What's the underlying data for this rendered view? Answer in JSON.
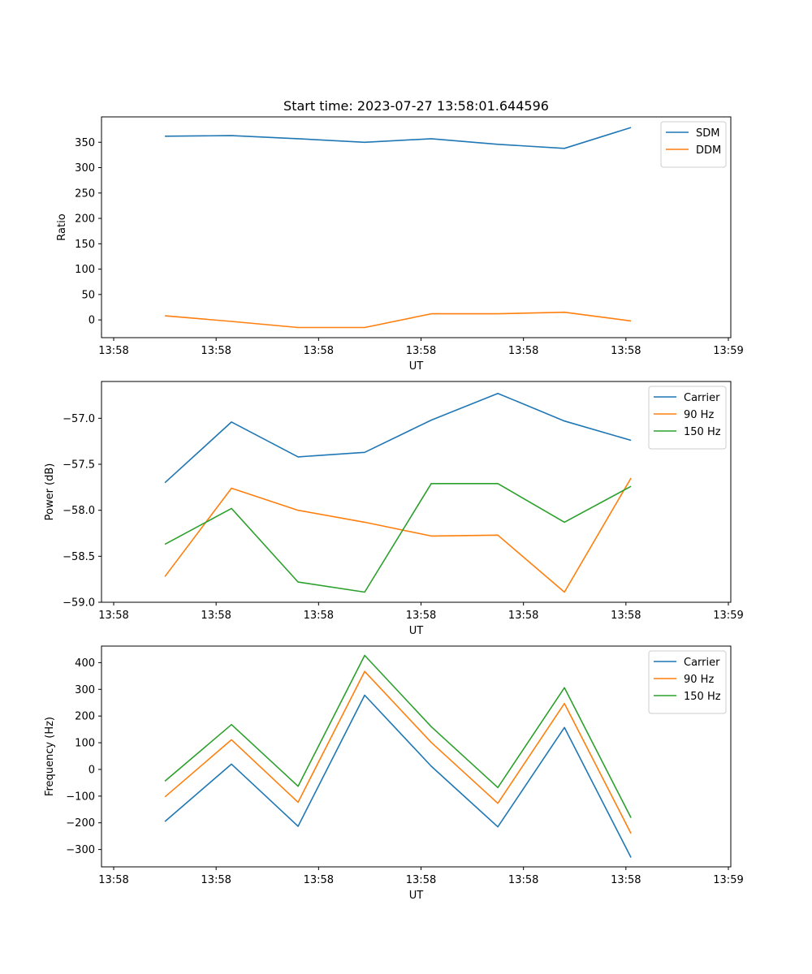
{
  "figure_title": "Start time: 2023-07-27 13:58:01.644596",
  "colors": {
    "blue": "#1f77b4",
    "orange": "#ff7f0e",
    "green": "#2ca02c",
    "axis": "#000000"
  },
  "chart_data": [
    {
      "type": "line",
      "title": "Start time: 2023-07-27 13:58:01.644596",
      "xlabel": "UT",
      "ylabel": "Ratio",
      "x": [
        0.5,
        1.15,
        1.8,
        2.45,
        3.1,
        3.75,
        4.4,
        5.05
      ],
      "xlim": [
        0,
        6
      ],
      "xticks": [
        0,
        1,
        2,
        3,
        4,
        5,
        6
      ],
      "xtick_labels": [
        "13:58",
        "13:58",
        "13:58",
        "13:58",
        "13:58",
        "13:58",
        "13:59"
      ],
      "ylim": [
        -35,
        400
      ],
      "yticks": [
        0,
        50,
        100,
        150,
        200,
        250,
        300,
        350
      ],
      "ytick_labels": [
        "0",
        "50",
        "100",
        "150",
        "200",
        "250",
        "300",
        "350"
      ],
      "legend_position": "top-right",
      "series": [
        {
          "name": "SDM",
          "color": "#1f77b4",
          "values": [
            362,
            363,
            357,
            350,
            357,
            346,
            338,
            379
          ]
        },
        {
          "name": "DDM",
          "color": "#ff7f0e",
          "values": [
            8,
            -3,
            -15,
            -15,
            12,
            12,
            15,
            -2
          ]
        }
      ]
    },
    {
      "type": "line",
      "title": "",
      "xlabel": "UT",
      "ylabel": "Power (dB)",
      "x": [
        0.5,
        1.15,
        1.8,
        2.45,
        3.1,
        3.75,
        4.4,
        5.05
      ],
      "xlim": [
        0,
        6
      ],
      "xticks": [
        0,
        1,
        2,
        3,
        4,
        5,
        6
      ],
      "xtick_labels": [
        "13:58",
        "13:58",
        "13:58",
        "13:58",
        "13:58",
        "13:58",
        "13:59"
      ],
      "ylim": [
        -59.0,
        -56.6
      ],
      "yticks": [
        -59.0,
        -58.5,
        -58.0,
        -57.5,
        -57.0
      ],
      "ytick_labels": [
        "−59.0",
        "−58.5",
        "−58.0",
        "−57.5",
        "−57.0"
      ],
      "legend_position": "top-right",
      "series": [
        {
          "name": "Carrier",
          "color": "#1f77b4",
          "values": [
            -57.7,
            -57.04,
            -57.42,
            -57.37,
            -57.02,
            -56.73,
            -57.03,
            -57.24
          ]
        },
        {
          "name": "90 Hz",
          "color": "#ff7f0e",
          "values": [
            -58.72,
            -57.76,
            -58.0,
            -58.13,
            -58.28,
            -58.27,
            -58.89,
            -57.65
          ]
        },
        {
          "name": "150 Hz",
          "color": "#2ca02c",
          "values": [
            -58.37,
            -57.98,
            -58.78,
            -58.89,
            -57.71,
            -57.71,
            -58.13,
            -57.74
          ]
        }
      ]
    },
    {
      "type": "line",
      "title": "",
      "xlabel": "UT",
      "ylabel": "Frequency (Hz)",
      "x": [
        0.5,
        1.15,
        1.8,
        2.45,
        3.1,
        3.75,
        4.4,
        5.05
      ],
      "xlim": [
        0,
        6
      ],
      "xticks": [
        0,
        1,
        2,
        3,
        4,
        5,
        6
      ],
      "xtick_labels": [
        "13:58",
        "13:58",
        "13:58",
        "13:58",
        "13:58",
        "13:58",
        "13:59"
      ],
      "ylim": [
        -365,
        462
      ],
      "yticks": [
        -300,
        -200,
        -100,
        0,
        100,
        200,
        300,
        400
      ],
      "ytick_labels": [
        "−300",
        "−200",
        "−100",
        "0",
        "100",
        "200",
        "300",
        "400"
      ],
      "legend_position": "top-right",
      "series": [
        {
          "name": "Carrier",
          "color": "#1f77b4",
          "values": [
            -195,
            20,
            -213,
            278,
            12,
            -215,
            157,
            -330
          ]
        },
        {
          "name": "90 Hz",
          "color": "#ff7f0e",
          "values": [
            -103,
            111,
            -123,
            367,
            101,
            -127,
            247,
            -240
          ]
        },
        {
          "name": "150 Hz",
          "color": "#2ca02c",
          "values": [
            -44,
            168,
            -63,
            427,
            160,
            -68,
            306,
            -181
          ]
        }
      ]
    }
  ]
}
